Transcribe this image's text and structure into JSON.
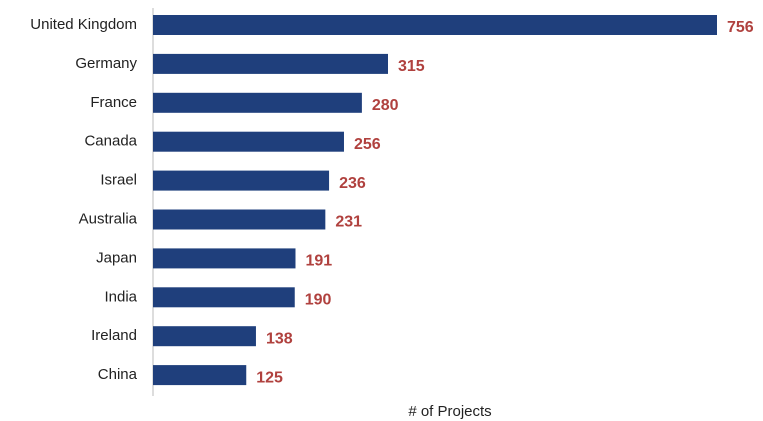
{
  "chart_data": {
    "type": "barh",
    "categories": [
      "United Kingdom",
      "Germany",
      "France",
      "Canada",
      "Israel",
      "Australia",
      "Japan",
      "India",
      "Ireland",
      "China"
    ],
    "values": [
      756,
      315,
      280,
      256,
      236,
      231,
      191,
      190,
      138,
      125
    ],
    "color": "#1f3f7c",
    "label_color": "#b0413e",
    "x_label": "# of Projects"
  }
}
